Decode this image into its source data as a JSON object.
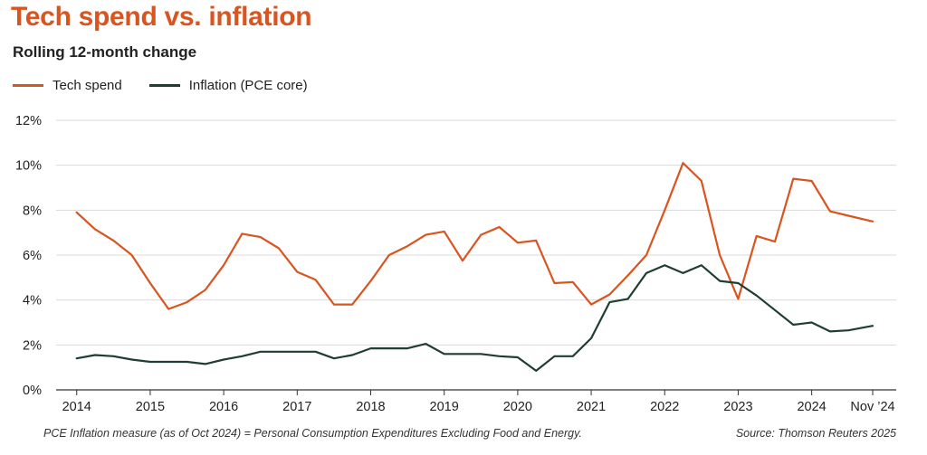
{
  "header": {
    "title": "Tech spend vs. inflation",
    "subtitle": "Rolling 12-month change"
  },
  "footer": {
    "note": "PCE Inflation measure (as of Oct 2024) =  Personal Consumption Expenditures Excluding Food and Energy.",
    "source": "Source: Thomson Reuters 2025"
  },
  "chart_data": {
    "type": "line",
    "title": "Tech spend vs. inflation",
    "subtitle": "Rolling 12-month change",
    "xlabel": "",
    "ylabel": "",
    "ylim": [
      0,
      12
    ],
    "yticks": [
      "0%",
      "2%",
      "4%",
      "6%",
      "8%",
      "10%",
      "12%"
    ],
    "xticks": [
      {
        "x": 2014,
        "label": "2014"
      },
      {
        "x": 2015,
        "label": "2015"
      },
      {
        "x": 2016,
        "label": "2016"
      },
      {
        "x": 2017,
        "label": "2017"
      },
      {
        "x": 2018,
        "label": "2018"
      },
      {
        "x": 2019,
        "label": "2019"
      },
      {
        "x": 2020,
        "label": "2020"
      },
      {
        "x": 2021,
        "label": "2021"
      },
      {
        "x": 2022,
        "label": "2022"
      },
      {
        "x": 2023,
        "label": "2023"
      },
      {
        "x": 2024,
        "label": "2024"
      },
      {
        "x": 2024.83,
        "label": "Nov ’24"
      }
    ],
    "grid": true,
    "legend_position": "top-left",
    "series": [
      {
        "name": "Tech spend",
        "color": "#d9541e",
        "points": [
          [
            2014.0,
            7.9
          ],
          [
            2014.25,
            7.15
          ],
          [
            2014.5,
            6.65
          ],
          [
            2014.75,
            6.0
          ],
          [
            2015.0,
            4.75
          ],
          [
            2015.25,
            3.6
          ],
          [
            2015.5,
            3.9
          ],
          [
            2015.75,
            4.45
          ],
          [
            2016.0,
            5.55
          ],
          [
            2016.25,
            6.95
          ],
          [
            2016.5,
            6.8
          ],
          [
            2016.75,
            6.3
          ],
          [
            2017.0,
            5.25
          ],
          [
            2017.25,
            4.9
          ],
          [
            2017.5,
            3.8
          ],
          [
            2017.75,
            3.8
          ],
          [
            2018.0,
            4.85
          ],
          [
            2018.25,
            6.0
          ],
          [
            2018.5,
            6.4
          ],
          [
            2018.75,
            6.9
          ],
          [
            2019.0,
            7.05
          ],
          [
            2019.25,
            5.75
          ],
          [
            2019.5,
            6.9
          ],
          [
            2019.75,
            7.25
          ],
          [
            2020.0,
            6.55
          ],
          [
            2020.25,
            6.65
          ],
          [
            2020.5,
            4.75
          ],
          [
            2020.75,
            4.8
          ],
          [
            2021.0,
            3.8
          ],
          [
            2021.25,
            4.25
          ],
          [
            2021.5,
            5.1
          ],
          [
            2021.75,
            6.0
          ],
          [
            2022.0,
            8.0
          ],
          [
            2022.25,
            10.1
          ],
          [
            2022.5,
            9.3
          ],
          [
            2022.75,
            6.0
          ],
          [
            2023.0,
            4.05
          ],
          [
            2023.25,
            6.85
          ],
          [
            2023.5,
            6.6
          ],
          [
            2023.75,
            9.4
          ],
          [
            2024.0,
            9.3
          ],
          [
            2024.25,
            7.95
          ],
          [
            2024.5,
            7.75
          ],
          [
            2024.83,
            7.5
          ]
        ]
      },
      {
        "name": "Inflation (PCE core)",
        "color": "#1f3d30",
        "points": [
          [
            2014.0,
            1.4
          ],
          [
            2014.25,
            1.55
          ],
          [
            2014.5,
            1.5
          ],
          [
            2014.75,
            1.35
          ],
          [
            2015.0,
            1.25
          ],
          [
            2015.25,
            1.25
          ],
          [
            2015.5,
            1.25
          ],
          [
            2015.75,
            1.15
          ],
          [
            2016.0,
            1.35
          ],
          [
            2016.25,
            1.5
          ],
          [
            2016.5,
            1.7
          ],
          [
            2016.75,
            1.7
          ],
          [
            2017.0,
            1.7
          ],
          [
            2017.25,
            1.7
          ],
          [
            2017.5,
            1.4
          ],
          [
            2017.75,
            1.55
          ],
          [
            2018.0,
            1.85
          ],
          [
            2018.25,
            1.85
          ],
          [
            2018.5,
            1.85
          ],
          [
            2018.75,
            2.05
          ],
          [
            2019.0,
            1.6
          ],
          [
            2019.25,
            1.6
          ],
          [
            2019.5,
            1.6
          ],
          [
            2019.75,
            1.5
          ],
          [
            2020.0,
            1.45
          ],
          [
            2020.25,
            0.85
          ],
          [
            2020.5,
            1.5
          ],
          [
            2020.75,
            1.5
          ],
          [
            2021.0,
            2.3
          ],
          [
            2021.25,
            3.9
          ],
          [
            2021.5,
            4.05
          ],
          [
            2021.75,
            5.2
          ],
          [
            2022.0,
            5.55
          ],
          [
            2022.25,
            5.2
          ],
          [
            2022.5,
            5.55
          ],
          [
            2022.75,
            4.85
          ],
          [
            2023.0,
            4.75
          ],
          [
            2023.25,
            4.2
          ],
          [
            2023.5,
            3.55
          ],
          [
            2023.75,
            2.9
          ],
          [
            2024.0,
            3.0
          ],
          [
            2024.25,
            2.6
          ],
          [
            2024.5,
            2.65
          ],
          [
            2024.83,
            2.85
          ]
        ]
      }
    ]
  }
}
